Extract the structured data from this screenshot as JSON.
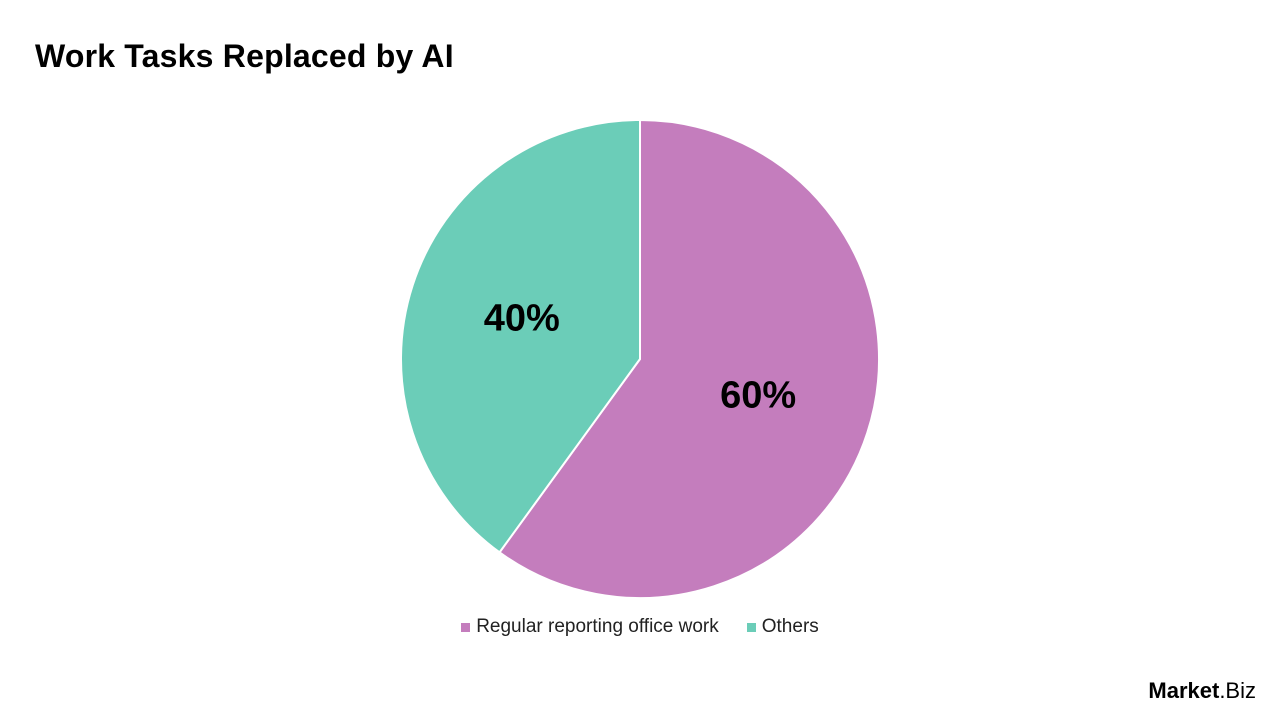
{
  "title": "Work Tasks Replaced by AI",
  "chart_data": {
    "type": "pie",
    "title": "Work Tasks Replaced by AI",
    "slices": [
      {
        "name": "Regular reporting office work",
        "value": 60,
        "label": "60%",
        "color": "#C47DBD"
      },
      {
        "name": "Others",
        "value": 40,
        "label": "40%",
        "color": "#6BCDB8"
      }
    ],
    "start_angle": "top, clockwise",
    "legend_position": "bottom"
  },
  "logo": {
    "strong": "Market",
    "light": ".Biz"
  }
}
